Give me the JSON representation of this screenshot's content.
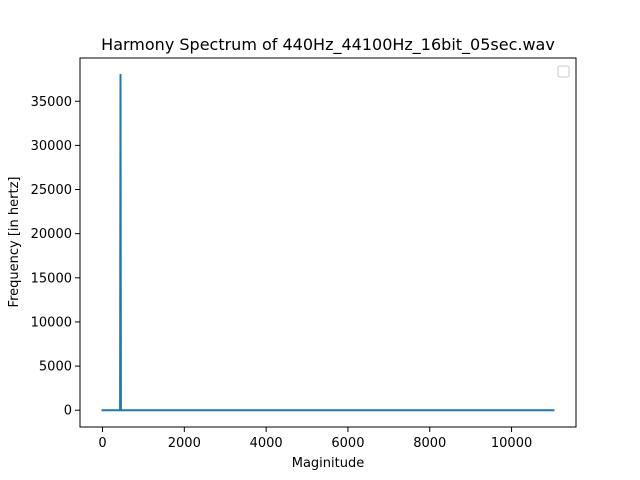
{
  "chart_data": {
    "type": "line",
    "title": "Harmony Spectrum of 440Hz_44100Hz_16bit_05sec.wav",
    "xlabel": "Maginitude",
    "ylabel": "Frequency [in hertz]",
    "xlim": [
      -550,
      11575
    ],
    "ylim": [
      -1900,
      39900
    ],
    "xticks": [
      0,
      2000,
      4000,
      6000,
      8000,
      10000
    ],
    "xtick_labels": [
      "0",
      "2000",
      "4000",
      "6000",
      "8000",
      "10000"
    ],
    "yticks": [
      0,
      5000,
      10000,
      15000,
      20000,
      25000,
      30000,
      35000
    ],
    "ytick_labels": [
      "0",
      "5000",
      "10000",
      "15000",
      "20000",
      "25000",
      "30000",
      "35000"
    ],
    "grid": false,
    "legend": {
      "position": "upper-right",
      "entries": []
    },
    "series": [
      {
        "color": "#1f77b4",
        "points": [
          [
            0,
            0
          ],
          [
            430,
            0
          ],
          [
            440,
            38000
          ],
          [
            450,
            0
          ],
          [
            11025,
            0
          ]
        ]
      }
    ]
  }
}
